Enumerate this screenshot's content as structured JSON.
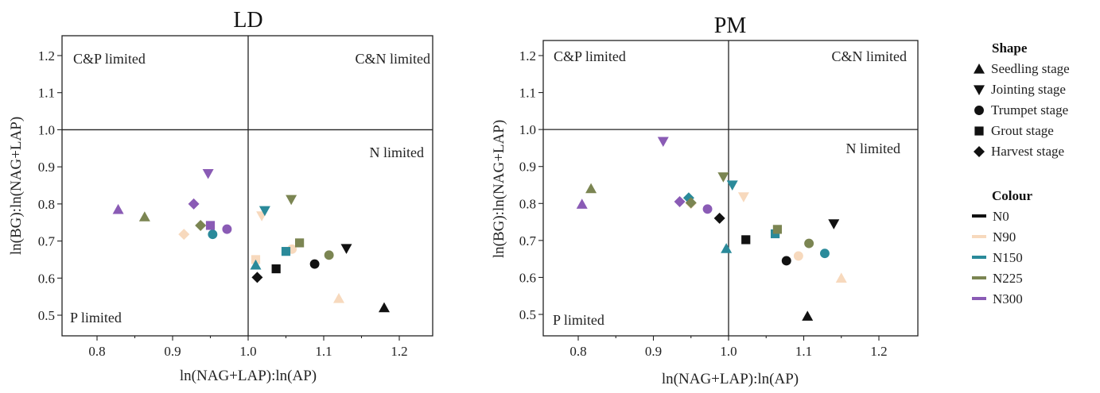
{
  "colors": {
    "N0": "#111111",
    "N90": "#f7d9bd",
    "N150": "#2a8a9a",
    "N225": "#7b8552",
    "N300": "#8a5bb5"
  },
  "legend": {
    "shape_title": "Shape",
    "shape_items": [
      {
        "label": "Seedling stage",
        "shape": "triangle-up"
      },
      {
        "label": "Jointing stage",
        "shape": "triangle-down"
      },
      {
        "label": "Trumpet stage",
        "shape": "circle"
      },
      {
        "label": "Grout stage",
        "shape": "square"
      },
      {
        "label": "Harvest stage",
        "shape": "diamond"
      }
    ],
    "colour_title": "Colour",
    "colour_items": [
      {
        "label": "N0",
        "color": "#111111"
      },
      {
        "label": "N90",
        "color": "#f7d9bd"
      },
      {
        "label": "N150",
        "color": "#2a8a9a"
      },
      {
        "label": "N225",
        "color": "#7b8552"
      },
      {
        "label": "N300",
        "color": "#8a5bb5"
      }
    ]
  },
  "chart_data": [
    {
      "type": "scatter",
      "title": "LD",
      "xlabel": "ln(NAG+LAP):ln(AP)",
      "ylabel": "ln(BG):ln(NAG+LAP)",
      "xlim": [
        0.76,
        1.24
      ],
      "ylim": [
        0.46,
        1.25
      ],
      "xticks": [
        "0.8",
        "0.9",
        "1.0",
        "1.1",
        "1.2"
      ],
      "yticks": [
        "0.5",
        "0.6",
        "0.7",
        "0.8",
        "0.9",
        "1.0",
        "1.1",
        "1.2"
      ],
      "reference_lines": {
        "x": 1.0,
        "y": 1.0
      },
      "region_labels": {
        "top_left": "C&P limited",
        "top_right": "C&N limited",
        "right": "N limited",
        "bottom_left": "P limited"
      },
      "series": [
        {
          "name": "N0",
          "points": [
            {
              "stage": "Seedling stage",
              "x": 1.18,
              "y": 0.52
            },
            {
              "stage": "Jointing stage",
              "x": 1.13,
              "y": 0.68
            },
            {
              "stage": "Trumpet stage",
              "x": 1.088,
              "y": 0.638
            },
            {
              "stage": "Grout stage",
              "x": 1.037,
              "y": 0.625
            },
            {
              "stage": "Harvest stage",
              "x": 1.012,
              "y": 0.602
            }
          ]
        },
        {
          "name": "N90",
          "points": [
            {
              "stage": "Seedling stage",
              "x": 1.12,
              "y": 0.545
            },
            {
              "stage": "Jointing stage",
              "x": 1.018,
              "y": 0.768
            },
            {
              "stage": "Trumpet stage",
              "x": 1.058,
              "y": 0.678
            },
            {
              "stage": "Grout stage",
              "x": 1.01,
              "y": 0.65
            },
            {
              "stage": "Harvest stage",
              "x": 0.915,
              "y": 0.718
            }
          ]
        },
        {
          "name": "N150",
          "points": [
            {
              "stage": "Seedling stage",
              "x": 1.01,
              "y": 0.635
            },
            {
              "stage": "Jointing stage",
              "x": 1.022,
              "y": 0.782
            },
            {
              "stage": "Trumpet stage",
              "x": 0.953,
              "y": 0.718
            },
            {
              "stage": "Grout stage",
              "x": 1.05,
              "y": 0.672
            }
          ]
        },
        {
          "name": "N225",
          "points": [
            {
              "stage": "Seedling stage",
              "x": 0.863,
              "y": 0.765
            },
            {
              "stage": "Jointing stage",
              "x": 1.057,
              "y": 0.812
            },
            {
              "stage": "Trumpet stage",
              "x": 1.107,
              "y": 0.662
            },
            {
              "stage": "Grout stage",
              "x": 1.068,
              "y": 0.695
            },
            {
              "stage": "Harvest stage",
              "x": 0.937,
              "y": 0.742
            }
          ]
        },
        {
          "name": "N300",
          "points": [
            {
              "stage": "Seedling stage",
              "x": 0.828,
              "y": 0.785
            },
            {
              "stage": "Jointing stage",
              "x": 0.947,
              "y": 0.882
            },
            {
              "stage": "Trumpet stage",
              "x": 0.972,
              "y": 0.732
            },
            {
              "stage": "Grout stage",
              "x": 0.95,
              "y": 0.742
            },
            {
              "stage": "Harvest stage",
              "x": 0.928,
              "y": 0.8
            }
          ]
        }
      ]
    },
    {
      "type": "scatter",
      "title": "PM",
      "xlabel": "ln(NAG+LAP):ln(AP)",
      "ylabel": "ln(BG):ln(NAG+LAP)",
      "xlim": [
        0.76,
        1.24
      ],
      "ylim": [
        0.46,
        1.25
      ],
      "xticks": [
        "0.8",
        "0.9",
        "1.0",
        "1.1",
        "1.2"
      ],
      "yticks": [
        "0.5",
        "0.6",
        "0.7",
        "0.8",
        "0.9",
        "1.0",
        "1.1",
        "1.2"
      ],
      "reference_lines": {
        "x": 1.0,
        "y": 1.0
      },
      "region_labels": {
        "top_left": "C&P limited",
        "top_right": "C&N limited",
        "right": "N limited",
        "bottom_left": "P limited"
      },
      "series": [
        {
          "name": "N0",
          "points": [
            {
              "stage": "Seedling stage",
              "x": 1.105,
              "y": 0.495
            },
            {
              "stage": "Jointing stage",
              "x": 1.14,
              "y": 0.745
            },
            {
              "stage": "Trumpet stage",
              "x": 1.077,
              "y": 0.645
            },
            {
              "stage": "Grout stage",
              "x": 1.023,
              "y": 0.702
            },
            {
              "stage": "Harvest stage",
              "x": 0.988,
              "y": 0.76
            }
          ]
        },
        {
          "name": "N90",
          "points": [
            {
              "stage": "Seedling stage",
              "x": 1.15,
              "y": 0.598
            },
            {
              "stage": "Jointing stage",
              "x": 1.02,
              "y": 0.818
            },
            {
              "stage": "Trumpet stage",
              "x": 1.093,
              "y": 0.658
            },
            {
              "stage": "Harvest stage",
              "x": 0.95,
              "y": 0.8
            }
          ]
        },
        {
          "name": "N150",
          "points": [
            {
              "stage": "Seedling stage",
              "x": 0.997,
              "y": 0.678
            },
            {
              "stage": "Jointing stage",
              "x": 1.005,
              "y": 0.85
            },
            {
              "stage": "Trumpet stage",
              "x": 1.128,
              "y": 0.665
            },
            {
              "stage": "Grout stage",
              "x": 1.062,
              "y": 0.718
            },
            {
              "stage": "Harvest stage",
              "x": 0.947,
              "y": 0.815
            }
          ]
        },
        {
          "name": "N225",
          "points": [
            {
              "stage": "Seedling stage",
              "x": 0.817,
              "y": 0.84
            },
            {
              "stage": "Jointing stage",
              "x": 0.993,
              "y": 0.872
            },
            {
              "stage": "Trumpet stage",
              "x": 1.107,
              "y": 0.692
            },
            {
              "stage": "Grout stage",
              "x": 1.065,
              "y": 0.73
            },
            {
              "stage": "Harvest stage",
              "x": 0.95,
              "y": 0.802
            }
          ]
        },
        {
          "name": "N300",
          "points": [
            {
              "stage": "Seedling stage",
              "x": 0.805,
              "y": 0.798
            },
            {
              "stage": "Jointing stage",
              "x": 0.913,
              "y": 0.968
            },
            {
              "stage": "Trumpet stage",
              "x": 0.972,
              "y": 0.785
            },
            {
              "stage": "Harvest stage",
              "x": 0.935,
              "y": 0.805
            }
          ]
        }
      ]
    }
  ]
}
